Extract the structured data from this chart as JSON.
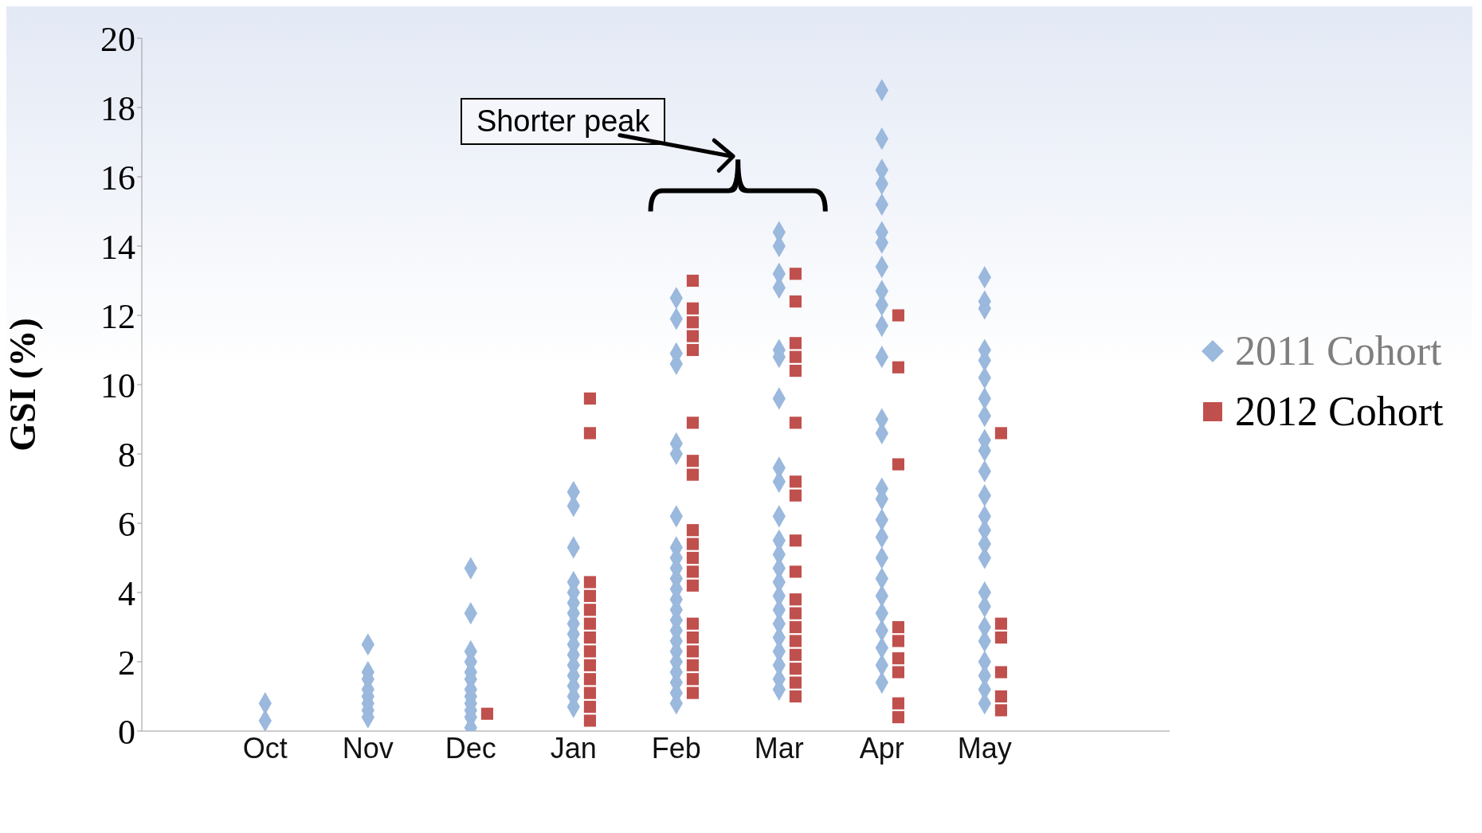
{
  "chart_data": {
    "type": "scatter",
    "ylabel": "GSI (%)",
    "categories": [
      "Oct",
      "Nov",
      "Dec",
      "Jan",
      "Feb",
      "Mar",
      "Apr",
      "May"
    ],
    "ylim": [
      0,
      20
    ],
    "yticks": [
      0,
      2,
      4,
      6,
      8,
      10,
      12,
      14,
      16,
      18,
      20
    ],
    "legend": "right",
    "annotations": [
      "Shorter peak"
    ],
    "series": [
      {
        "name": "2011 Cohort",
        "color": "#9bb8dd",
        "marker": "diamond",
        "x": [
          "Oct",
          "Oct",
          "Nov",
          "Nov",
          "Nov",
          "Nov",
          "Nov",
          "Nov",
          "Nov",
          "Nov",
          "Dec",
          "Dec",
          "Dec",
          "Dec",
          "Dec",
          "Dec",
          "Dec",
          "Dec",
          "Dec",
          "Dec",
          "Dec",
          "Dec",
          "Jan",
          "Jan",
          "Jan",
          "Jan",
          "Jan",
          "Jan",
          "Jan",
          "Jan",
          "Jan",
          "Jan",
          "Jan",
          "Jan",
          "Jan",
          "Jan",
          "Jan",
          "Jan",
          "Feb",
          "Feb",
          "Feb",
          "Feb",
          "Feb",
          "Feb",
          "Feb",
          "Feb",
          "Feb",
          "Feb",
          "Feb",
          "Feb",
          "Feb",
          "Feb",
          "Feb",
          "Feb",
          "Feb",
          "Feb",
          "Feb",
          "Feb",
          "Feb",
          "Feb",
          "Feb",
          "Mar",
          "Mar",
          "Mar",
          "Mar",
          "Mar",
          "Mar",
          "Mar",
          "Mar",
          "Mar",
          "Mar",
          "Mar",
          "Mar",
          "Mar",
          "Mar",
          "Mar",
          "Mar",
          "Mar",
          "Mar",
          "Mar",
          "Mar",
          "Mar",
          "Mar",
          "Apr",
          "Apr",
          "Apr",
          "Apr",
          "Apr",
          "Apr",
          "Apr",
          "Apr",
          "Apr",
          "Apr",
          "Apr",
          "Apr",
          "Apr",
          "Apr",
          "Apr",
          "Apr",
          "Apr",
          "Apr",
          "Apr",
          "Apr",
          "Apr",
          "Apr",
          "Apr",
          "Apr",
          "Apr",
          "Apr",
          "May",
          "May",
          "May",
          "May",
          "May",
          "May",
          "May",
          "May",
          "May",
          "May",
          "May",
          "May",
          "May",
          "May",
          "May",
          "May",
          "May",
          "May",
          "May",
          "May",
          "May",
          "May",
          "May",
          "May"
        ],
        "values": [
          0.3,
          0.8,
          2.5,
          1.7,
          1.5,
          1.2,
          1.0,
          0.8,
          0.6,
          0.4,
          4.7,
          3.4,
          2.3,
          2.0,
          1.7,
          1.5,
          1.2,
          1.0,
          0.8,
          0.6,
          0.4,
          0.1,
          6.9,
          6.5,
          5.3,
          4.3,
          4.0,
          3.7,
          3.4,
          3.1,
          2.8,
          2.5,
          2.2,
          1.9,
          1.6,
          1.3,
          1.0,
          0.7,
          12.5,
          11.9,
          10.9,
          10.6,
          8.3,
          8.0,
          6.2,
          5.3,
          5.0,
          4.7,
          4.4,
          4.1,
          3.8,
          3.5,
          3.2,
          2.9,
          2.6,
          2.3,
          2.0,
          1.7,
          1.4,
          1.1,
          0.8,
          14.4,
          14.0,
          13.2,
          12.8,
          11.0,
          10.8,
          9.6,
          7.6,
          7.2,
          6.2,
          5.5,
          5.1,
          4.7,
          4.3,
          3.9,
          3.5,
          3.1,
          2.7,
          2.3,
          1.9,
          1.5,
          1.2,
          18.5,
          17.1,
          16.2,
          15.8,
          15.2,
          14.4,
          14.1,
          13.4,
          12.7,
          12.3,
          11.7,
          10.8,
          9.0,
          8.6,
          7.0,
          6.7,
          6.1,
          5.6,
          5.0,
          4.4,
          3.9,
          3.4,
          2.9,
          2.4,
          1.9,
          1.4,
          13.1,
          12.4,
          12.2,
          11.0,
          10.7,
          10.2,
          9.6,
          9.1,
          8.4,
          8.1,
          7.5,
          6.8,
          6.2,
          5.8,
          5.4,
          5.0,
          4.0,
          3.6,
          3.0,
          2.6,
          2.0,
          1.6,
          1.2,
          0.8
        ]
      },
      {
        "name": "2012 Cohort",
        "color": "#c0504d",
        "marker": "square",
        "x": [
          "Dec",
          "Jan",
          "Jan",
          "Jan",
          "Jan",
          "Jan",
          "Jan",
          "Jan",
          "Jan",
          "Jan",
          "Jan",
          "Jan",
          "Jan",
          "Jan",
          "Feb",
          "Feb",
          "Feb",
          "Feb",
          "Feb",
          "Feb",
          "Feb",
          "Feb",
          "Feb",
          "Feb",
          "Feb",
          "Feb",
          "Feb",
          "Feb",
          "Feb",
          "Feb",
          "Feb",
          "Feb",
          "Feb",
          "Mar",
          "Mar",
          "Mar",
          "Mar",
          "Mar",
          "Mar",
          "Mar",
          "Mar",
          "Mar",
          "Mar",
          "Mar",
          "Mar",
          "Mar",
          "Mar",
          "Mar",
          "Mar",
          "Mar",
          "Mar",
          "Apr",
          "Apr",
          "Apr",
          "Apr",
          "Apr",
          "Apr",
          "Apr",
          "Apr",
          "Apr",
          "May",
          "May",
          "May",
          "May",
          "May",
          "May"
        ],
        "values": [
          0.5,
          9.6,
          8.6,
          4.3,
          3.9,
          3.5,
          3.1,
          2.7,
          2.3,
          1.9,
          1.5,
          1.1,
          0.7,
          0.3,
          13.0,
          12.2,
          11.8,
          11.4,
          11.0,
          8.9,
          7.8,
          7.4,
          5.8,
          5.4,
          5.0,
          4.6,
          4.2,
          3.1,
          2.7,
          2.3,
          1.9,
          1.5,
          1.1,
          13.2,
          12.4,
          11.2,
          10.8,
          10.4,
          8.9,
          7.2,
          6.8,
          5.5,
          4.6,
          3.8,
          3.4,
          3.0,
          2.6,
          2.2,
          1.8,
          1.4,
          1.0,
          12.0,
          10.5,
          7.7,
          3.0,
          2.6,
          2.1,
          1.7,
          0.8,
          0.4,
          8.6,
          3.1,
          2.7,
          1.7,
          1.0,
          0.6
        ]
      }
    ]
  }
}
